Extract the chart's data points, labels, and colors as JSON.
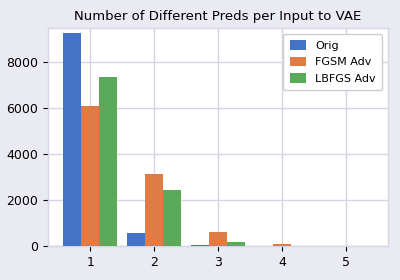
{
  "title": "Number of Different Preds per Input to VAE",
  "categories": [
    1,
    2,
    3,
    4,
    5
  ],
  "series": {
    "Orig": [
      9300,
      600,
      75,
      0,
      0
    ],
    "FGSM Adv": [
      6100,
      3150,
      620,
      120,
      0
    ],
    "LBFGS Adv": [
      7350,
      2450,
      200,
      0,
      0
    ]
  },
  "colors": {
    "Orig": "#4472c4",
    "FGSM Adv": "#e07b45",
    "LBFGS Adv": "#5aaa5a"
  },
  "ylim": [
    0,
    9500
  ],
  "yticks": [
    0,
    2000,
    4000,
    6000,
    8000
  ],
  "bar_width": 0.28,
  "legend_loc": "upper right",
  "figure_facecolor": "#eaeaf2",
  "axes_facecolor": "#ffffff",
  "grid_color": "#d5d5e8",
  "title_fontsize": 9.5
}
